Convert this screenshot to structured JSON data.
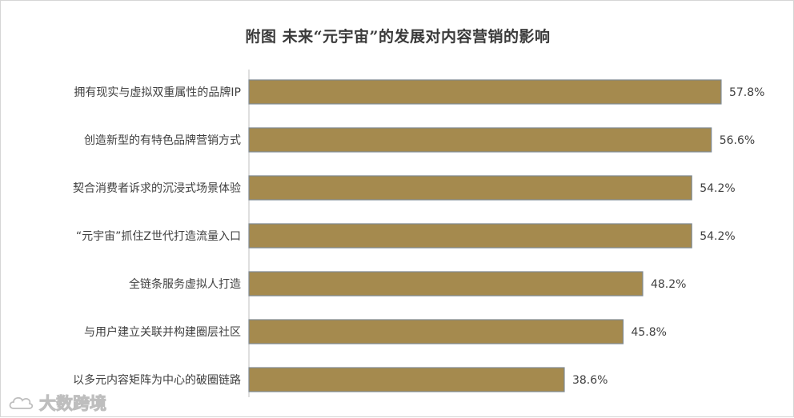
{
  "chart_data": {
    "type": "bar",
    "orientation": "horizontal",
    "title": "附图  未来“元宇宙”的发展对内容营销的影响",
    "categories": [
      "拥有现实与虚拟双重属性的品牌IP",
      "创造新型的有特色品牌营销方式",
      "契合消费者诉求的沉浸式场景体验",
      "“元宇宙”抓住Z世代打造流量入口",
      "全链条服务虚拟人打造",
      "与用户建立关联并构建圈层社区",
      "以多元内容矩阵为中心的破圈链路"
    ],
    "values": [
      57.8,
      56.6,
      54.2,
      54.2,
      48.2,
      45.8,
      38.6
    ],
    "value_labels": [
      "57.8%",
      "56.6%",
      "54.2%",
      "54.2%",
      "48.2%",
      "45.8%",
      "38.6%"
    ],
    "xlim": [
      0,
      60
    ],
    "grid": false,
    "legend": "none",
    "colors": {
      "bar": "#a58a4e",
      "bar_border": "#7f8a93"
    }
  },
  "watermark": {
    "text": "大数跨境",
    "icon": "cloud-logo-icon"
  }
}
